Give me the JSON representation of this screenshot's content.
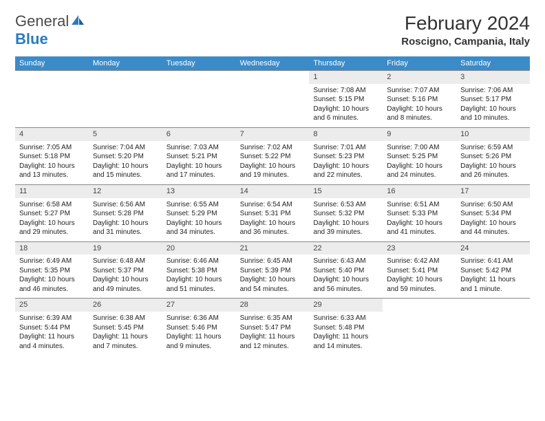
{
  "brand": {
    "part1": "General",
    "part2": "Blue"
  },
  "title": "February 2024",
  "location": "Roscigno, Campania, Italy",
  "header_bg": "#3b8bc9",
  "daynum_bg": "#ececec",
  "day_names": [
    "Sunday",
    "Monday",
    "Tuesday",
    "Wednesday",
    "Thursday",
    "Friday",
    "Saturday"
  ],
  "weeks": [
    [
      {
        "n": "",
        "sr": "",
        "ss": "",
        "dl": ""
      },
      {
        "n": "",
        "sr": "",
        "ss": "",
        "dl": ""
      },
      {
        "n": "",
        "sr": "",
        "ss": "",
        "dl": ""
      },
      {
        "n": "",
        "sr": "",
        "ss": "",
        "dl": ""
      },
      {
        "n": "1",
        "sr": "Sunrise: 7:08 AM",
        "ss": "Sunset: 5:15 PM",
        "dl": "Daylight: 10 hours and 6 minutes."
      },
      {
        "n": "2",
        "sr": "Sunrise: 7:07 AM",
        "ss": "Sunset: 5:16 PM",
        "dl": "Daylight: 10 hours and 8 minutes."
      },
      {
        "n": "3",
        "sr": "Sunrise: 7:06 AM",
        "ss": "Sunset: 5:17 PM",
        "dl": "Daylight: 10 hours and 10 minutes."
      }
    ],
    [
      {
        "n": "4",
        "sr": "Sunrise: 7:05 AM",
        "ss": "Sunset: 5:18 PM",
        "dl": "Daylight: 10 hours and 13 minutes."
      },
      {
        "n": "5",
        "sr": "Sunrise: 7:04 AM",
        "ss": "Sunset: 5:20 PM",
        "dl": "Daylight: 10 hours and 15 minutes."
      },
      {
        "n": "6",
        "sr": "Sunrise: 7:03 AM",
        "ss": "Sunset: 5:21 PM",
        "dl": "Daylight: 10 hours and 17 minutes."
      },
      {
        "n": "7",
        "sr": "Sunrise: 7:02 AM",
        "ss": "Sunset: 5:22 PM",
        "dl": "Daylight: 10 hours and 19 minutes."
      },
      {
        "n": "8",
        "sr": "Sunrise: 7:01 AM",
        "ss": "Sunset: 5:23 PM",
        "dl": "Daylight: 10 hours and 22 minutes."
      },
      {
        "n": "9",
        "sr": "Sunrise: 7:00 AM",
        "ss": "Sunset: 5:25 PM",
        "dl": "Daylight: 10 hours and 24 minutes."
      },
      {
        "n": "10",
        "sr": "Sunrise: 6:59 AM",
        "ss": "Sunset: 5:26 PM",
        "dl": "Daylight: 10 hours and 26 minutes."
      }
    ],
    [
      {
        "n": "11",
        "sr": "Sunrise: 6:58 AM",
        "ss": "Sunset: 5:27 PM",
        "dl": "Daylight: 10 hours and 29 minutes."
      },
      {
        "n": "12",
        "sr": "Sunrise: 6:56 AM",
        "ss": "Sunset: 5:28 PM",
        "dl": "Daylight: 10 hours and 31 minutes."
      },
      {
        "n": "13",
        "sr": "Sunrise: 6:55 AM",
        "ss": "Sunset: 5:29 PM",
        "dl": "Daylight: 10 hours and 34 minutes."
      },
      {
        "n": "14",
        "sr": "Sunrise: 6:54 AM",
        "ss": "Sunset: 5:31 PM",
        "dl": "Daylight: 10 hours and 36 minutes."
      },
      {
        "n": "15",
        "sr": "Sunrise: 6:53 AM",
        "ss": "Sunset: 5:32 PM",
        "dl": "Daylight: 10 hours and 39 minutes."
      },
      {
        "n": "16",
        "sr": "Sunrise: 6:51 AM",
        "ss": "Sunset: 5:33 PM",
        "dl": "Daylight: 10 hours and 41 minutes."
      },
      {
        "n": "17",
        "sr": "Sunrise: 6:50 AM",
        "ss": "Sunset: 5:34 PM",
        "dl": "Daylight: 10 hours and 44 minutes."
      }
    ],
    [
      {
        "n": "18",
        "sr": "Sunrise: 6:49 AM",
        "ss": "Sunset: 5:35 PM",
        "dl": "Daylight: 10 hours and 46 minutes."
      },
      {
        "n": "19",
        "sr": "Sunrise: 6:48 AM",
        "ss": "Sunset: 5:37 PM",
        "dl": "Daylight: 10 hours and 49 minutes."
      },
      {
        "n": "20",
        "sr": "Sunrise: 6:46 AM",
        "ss": "Sunset: 5:38 PM",
        "dl": "Daylight: 10 hours and 51 minutes."
      },
      {
        "n": "21",
        "sr": "Sunrise: 6:45 AM",
        "ss": "Sunset: 5:39 PM",
        "dl": "Daylight: 10 hours and 54 minutes."
      },
      {
        "n": "22",
        "sr": "Sunrise: 6:43 AM",
        "ss": "Sunset: 5:40 PM",
        "dl": "Daylight: 10 hours and 56 minutes."
      },
      {
        "n": "23",
        "sr": "Sunrise: 6:42 AM",
        "ss": "Sunset: 5:41 PM",
        "dl": "Daylight: 10 hours and 59 minutes."
      },
      {
        "n": "24",
        "sr": "Sunrise: 6:41 AM",
        "ss": "Sunset: 5:42 PM",
        "dl": "Daylight: 11 hours and 1 minute."
      }
    ],
    [
      {
        "n": "25",
        "sr": "Sunrise: 6:39 AM",
        "ss": "Sunset: 5:44 PM",
        "dl": "Daylight: 11 hours and 4 minutes."
      },
      {
        "n": "26",
        "sr": "Sunrise: 6:38 AM",
        "ss": "Sunset: 5:45 PM",
        "dl": "Daylight: 11 hours and 7 minutes."
      },
      {
        "n": "27",
        "sr": "Sunrise: 6:36 AM",
        "ss": "Sunset: 5:46 PM",
        "dl": "Daylight: 11 hours and 9 minutes."
      },
      {
        "n": "28",
        "sr": "Sunrise: 6:35 AM",
        "ss": "Sunset: 5:47 PM",
        "dl": "Daylight: 11 hours and 12 minutes."
      },
      {
        "n": "29",
        "sr": "Sunrise: 6:33 AM",
        "ss": "Sunset: 5:48 PM",
        "dl": "Daylight: 11 hours and 14 minutes."
      },
      {
        "n": "",
        "sr": "",
        "ss": "",
        "dl": ""
      },
      {
        "n": "",
        "sr": "",
        "ss": "",
        "dl": ""
      }
    ]
  ]
}
